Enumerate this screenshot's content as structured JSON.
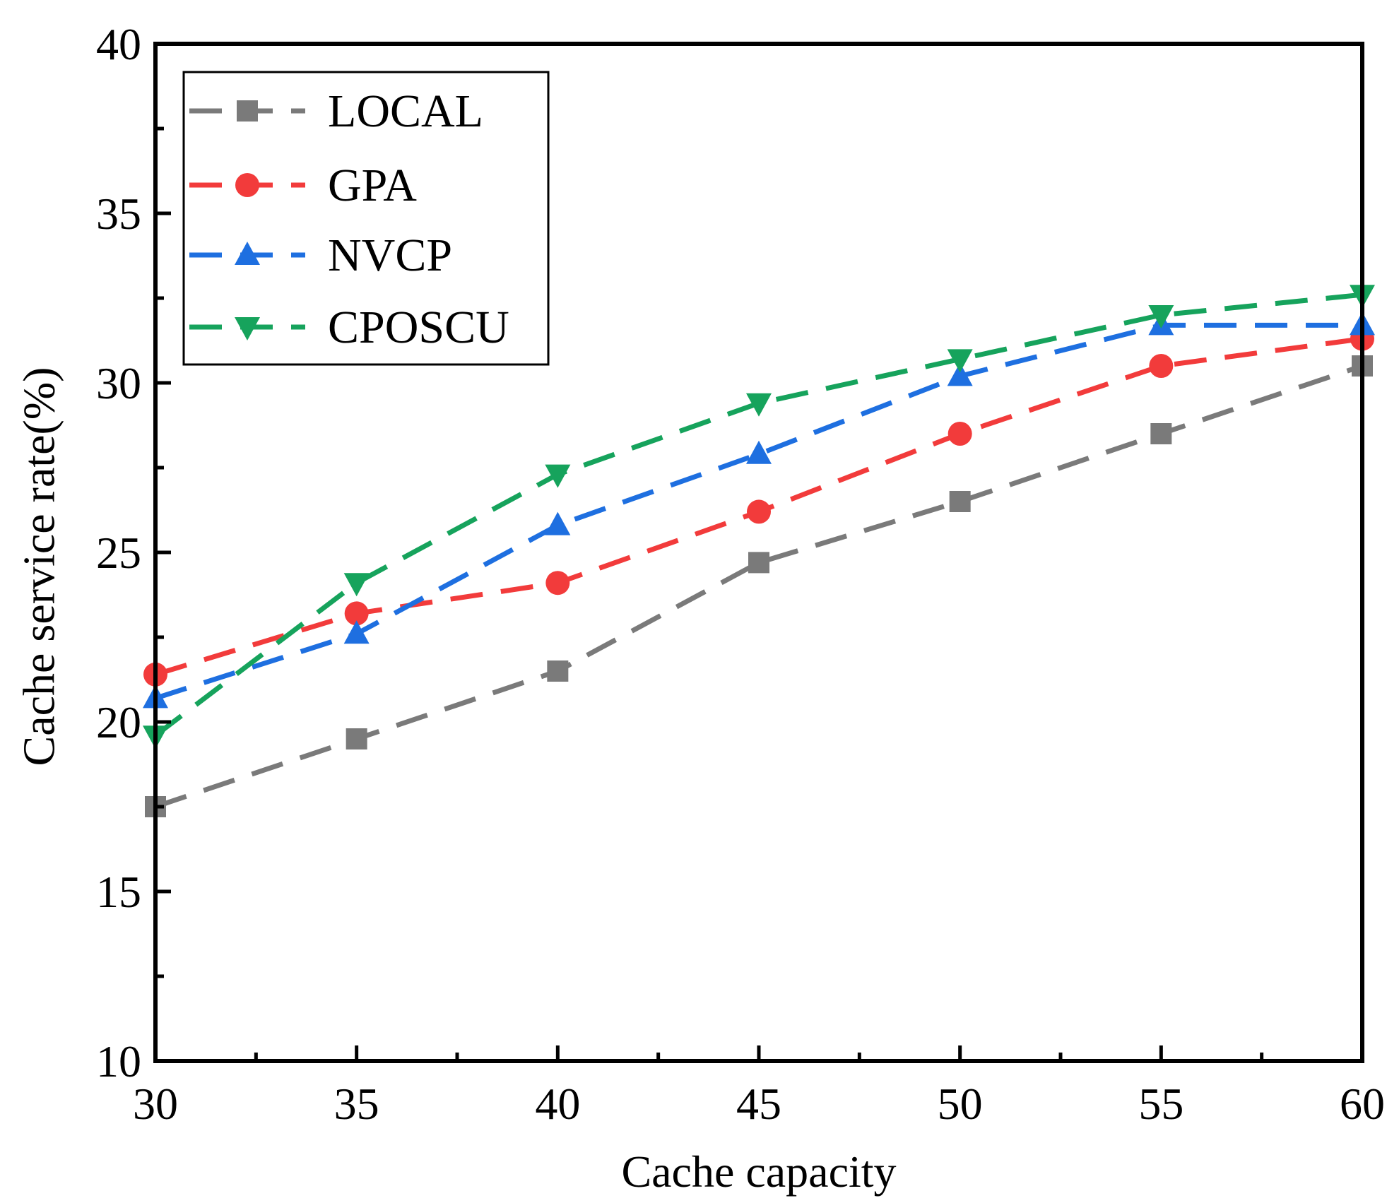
{
  "chart_data": {
    "type": "line",
    "title": "",
    "xlabel": "Cache capacity",
    "ylabel": "Cache service rate(%)",
    "x": [
      30,
      35,
      40,
      45,
      50,
      55,
      60
    ],
    "xlim": [
      30,
      60
    ],
    "ylim": [
      10,
      40
    ],
    "xticks": [
      30,
      35,
      40,
      45,
      50,
      55,
      60
    ],
    "yticks": [
      10,
      15,
      20,
      25,
      30,
      35,
      40
    ],
    "legend_position": "top-left",
    "grid": false,
    "series": [
      {
        "name": "LOCAL",
        "color": "#7a7a7a",
        "marker": "square",
        "values": [
          17.5,
          19.5,
          21.5,
          24.7,
          26.5,
          28.5,
          30.5
        ]
      },
      {
        "name": "GPA",
        "color": "#f23b3b",
        "marker": "circle",
        "values": [
          21.4,
          23.2,
          24.1,
          26.2,
          28.5,
          30.5,
          31.3
        ]
      },
      {
        "name": "NVCP",
        "color": "#1e6fe0",
        "marker": "triangle-up",
        "values": [
          20.7,
          22.6,
          25.8,
          27.9,
          30.2,
          31.7,
          31.7
        ]
      },
      {
        "name": "CPOSCU",
        "color": "#16a35c",
        "marker": "triangle-down",
        "values": [
          19.6,
          24.1,
          27.3,
          29.4,
          30.7,
          32.0,
          32.6
        ]
      }
    ]
  }
}
